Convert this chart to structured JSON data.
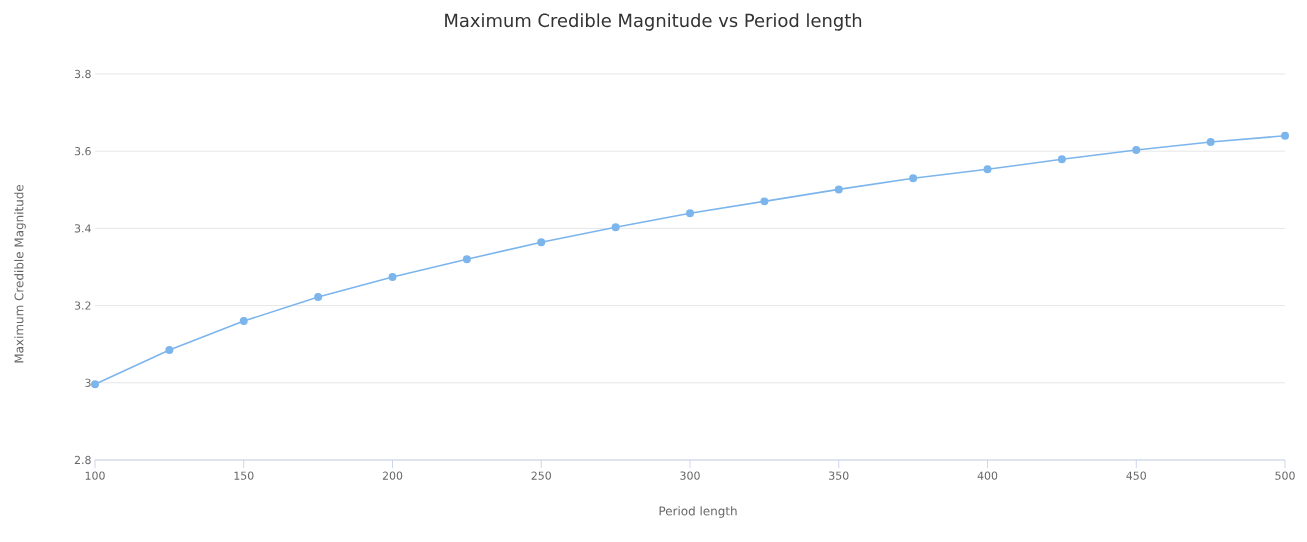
{
  "chart_data": {
    "type": "line",
    "title": "Maximum Credible Magnitude vs Period length",
    "xlabel": "Period length",
    "ylabel": "Maximum Credible Magnitude",
    "x": [
      100,
      125,
      150,
      175,
      200,
      225,
      250,
      275,
      300,
      325,
      350,
      375,
      400,
      425,
      450,
      475,
      500
    ],
    "series": [
      {
        "color": "#7cb5ec",
        "values": [
          2.996,
          3.085,
          3.16,
          3.222,
          3.274,
          3.32,
          3.364,
          3.403,
          3.439,
          3.47,
          3.501,
          3.53,
          3.553,
          3.579,
          3.603,
          3.624,
          3.64
        ]
      }
    ],
    "xlim": [
      100,
      500
    ],
    "xticks": [
      100,
      150,
      200,
      250,
      300,
      350,
      400,
      450,
      500
    ],
    "ylim": [
      2.8,
      3.8
    ],
    "yticks": [
      2.8,
      3,
      3.2,
      3.4,
      3.6,
      3.8
    ],
    "grid": "y",
    "marker": "circle",
    "line_style": "solid"
  }
}
